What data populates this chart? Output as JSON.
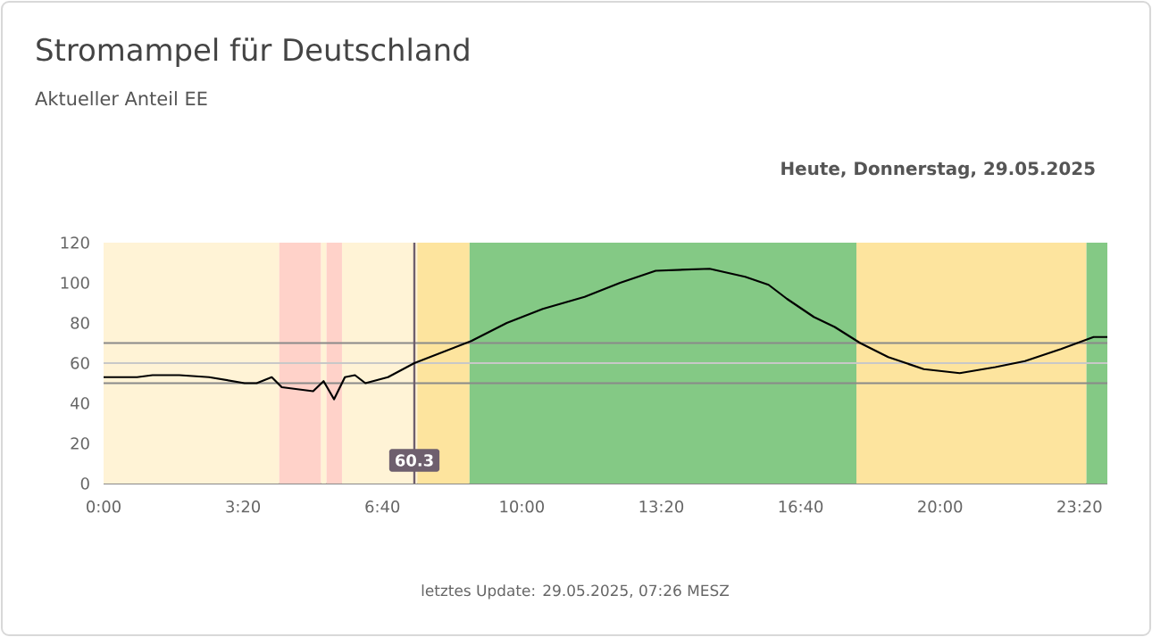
{
  "chart_data": {
    "type": "line",
    "title": "Stromampel für Deutschland",
    "subtitle": "Aktueller Anteil EE",
    "annotations": [
      "Heute, Donnerstag, 29.05.2025",
      "letztes Update: 29.05.2025, 07:26 MESZ",
      "60.3"
    ],
    "x": [
      0,
      0.8,
      1.17,
      1.81,
      2.52,
      3.37,
      3.66,
      4.02,
      4.26,
      5.01,
      5.26,
      5.51,
      5.77,
      6.01,
      6.26,
      6.8,
      7.43,
      8.79,
      9.64,
      10.5,
      11.5,
      12.35,
      13.2,
      14.49,
      15.34,
      15.9,
      16.34,
      16.98,
      17.48,
      18.09,
      18.76,
      19.61,
      20.47,
      21.32,
      22.03,
      22.89,
      23.67,
      24
    ],
    "values": [
      53,
      53,
      54,
      54,
      53,
      50,
      50,
      53,
      48,
      46,
      51,
      42,
      53,
      54,
      50,
      53,
      60,
      71,
      80,
      87,
      93,
      100,
      106,
      107,
      103,
      99,
      92,
      83,
      78,
      70,
      63,
      57,
      55,
      58,
      61,
      67,
      73,
      73
    ],
    "color": "#000000",
    "marker": "none",
    "line_style": "solid",
    "xlim": [
      0,
      24
    ],
    "ylim": [
      0,
      120
    ],
    "xticks": [
      {
        "value": 0,
        "label": "0:00"
      },
      {
        "value": 3.3333,
        "label": "3:20"
      },
      {
        "value": 6.6667,
        "label": "6:40"
      },
      {
        "value": 10,
        "label": "10:00"
      },
      {
        "value": 13.3333,
        "label": "13:20"
      },
      {
        "value": 16.6667,
        "label": "16:40"
      },
      {
        "value": 20,
        "label": "20:00"
      },
      {
        "value": 23.3333,
        "label": "23:20"
      }
    ],
    "yticks": [
      0,
      20,
      40,
      60,
      80,
      100,
      120
    ],
    "bands": [
      {
        "axis": "x",
        "from": 0,
        "to": 4.2,
        "color": "#fff3d6"
      },
      {
        "axis": "x",
        "from": 4.2,
        "to": 5.2,
        "color": "#ffd2c9"
      },
      {
        "axis": "x",
        "from": 5.2,
        "to": 5.33,
        "color": "#fff3d6"
      },
      {
        "axis": "x",
        "from": 5.33,
        "to": 5.7,
        "color": "#ffd2c9"
      },
      {
        "axis": "x",
        "from": 5.7,
        "to": 7.5,
        "color": "#fff3d6"
      },
      {
        "axis": "x",
        "from": 7.5,
        "to": 8.75,
        "color": "#fde49e"
      },
      {
        "axis": "x",
        "from": 8.75,
        "to": 18,
        "color": "#84c985"
      },
      {
        "axis": "x",
        "from": 18,
        "to": 23.5,
        "color": "#fde49e"
      },
      {
        "axis": "x",
        "from": 23.5,
        "to": 24,
        "color": "#84c985"
      }
    ],
    "ref_lines": [
      {
        "axis": "y",
        "value": 70,
        "color": "#8a8a8a"
      },
      {
        "axis": "y",
        "value": 60,
        "color": "#c8c8c8"
      },
      {
        "axis": "y",
        "value": 50,
        "color": "#8a8a8a"
      },
      {
        "axis": "x",
        "value": 7.43,
        "color": "#6e5f6e"
      }
    ]
  }
}
